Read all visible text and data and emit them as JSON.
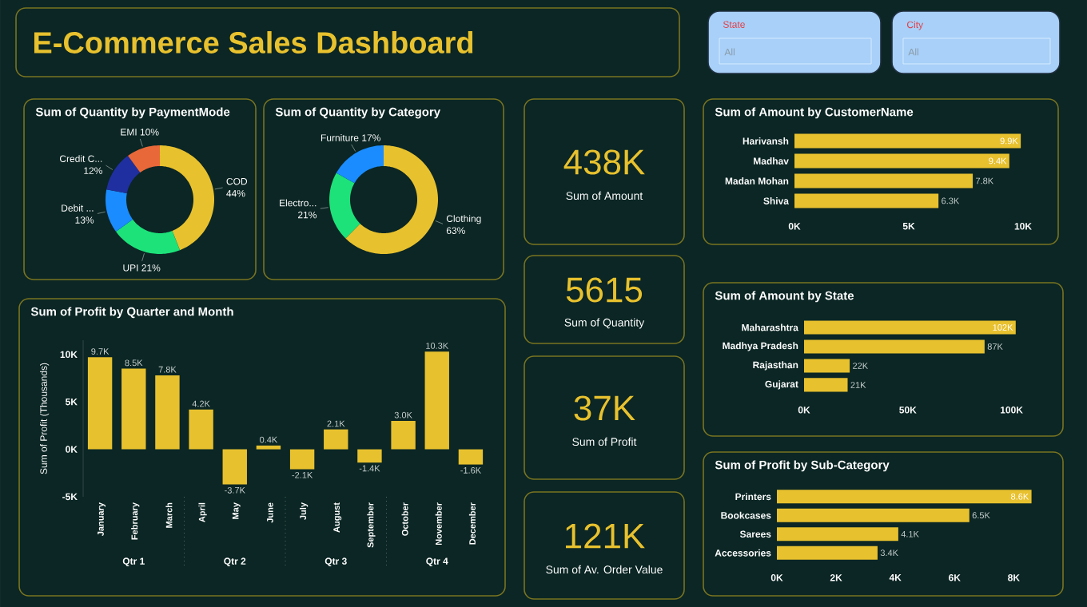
{
  "chart_data": [
    {
      "type": "other",
      "title": "E-Commerce Sales Dashboard"
    },
    {
      "type": "other",
      "title": "State",
      "annotations": [
        "All"
      ]
    },
    {
      "type": "other",
      "title": "City",
      "annotations": [
        "All"
      ]
    },
    {
      "type": "donut",
      "title": "Sum of Quantity by PaymentMode",
      "categories": [
        "COD",
        "UPI",
        "Debit ...",
        "Credit C...",
        "EMI"
      ],
      "values": [
        44,
        21,
        13,
        12,
        10
      ],
      "value_labels": [
        "44%",
        "21%",
        "13%",
        "12%",
        "10%"
      ],
      "colors": [
        "#e8c12e",
        "#1de27a",
        "#1a8cff",
        "#1f2fa0",
        "#e8683a"
      ]
    },
    {
      "type": "donut",
      "title": "Sum of Quantity by Category",
      "categories": [
        "Clothing",
        "Electro...",
        "Furniture"
      ],
      "values": [
        63,
        21,
        17
      ],
      "value_labels": [
        "63%",
        "21%",
        "17%"
      ],
      "colors": [
        "#e8c12e",
        "#1de27a",
        "#1a8cff"
      ]
    },
    {
      "type": "bar",
      "title": "Sum of Profit by Quarter and Month",
      "ylabel": "Sum of Profit (Thousands)",
      "categories": [
        "January",
        "February",
        "March",
        "April",
        "May",
        "June",
        "July",
        "August",
        "September",
        "October",
        "November",
        "December"
      ],
      "values": [
        9700,
        8500,
        7800,
        4200,
        -3700,
        400,
        -2100,
        2100,
        -1400,
        3000,
        10300,
        -1600
      ],
      "value_labels": [
        "9.7K",
        "8.5K",
        "7.8K",
        "4.2K",
        "-3.7K",
        "0.4K",
        "-2.1K",
        "2.1K",
        "-1.4K",
        "3.0K",
        "10.3K",
        "-1.6K"
      ],
      "color": "#e8c12e",
      "ylim": [
        -5000,
        11500
      ],
      "yticks": [
        {
          "value": -5000,
          "label": "-5K"
        },
        {
          "value": 0,
          "label": "0K"
        },
        {
          "value": 5000,
          "label": "5K"
        },
        {
          "value": 10000,
          "label": "10K"
        }
      ],
      "annotations": [
        "Qtr 1",
        "Qtr 2",
        "Qtr 3",
        "Qtr 4"
      ]
    },
    {
      "type": "other",
      "title": "Sum of Amount",
      "annotations": [
        "438K"
      ]
    },
    {
      "type": "other",
      "title": "Sum of Quantity",
      "annotations": [
        "5615"
      ]
    },
    {
      "type": "other",
      "title": "Sum of Profit",
      "annotations": [
        "37K"
      ]
    },
    {
      "type": "other",
      "title": "Sum of Av. Order Value",
      "annotations": [
        "121K"
      ]
    },
    {
      "type": "bar",
      "orientation": "horizontal",
      "title": "Sum of Amount by CustomerName",
      "categories": [
        "Harivansh",
        "Madhav",
        "Madan Mohan",
        "Shiva"
      ],
      "values": [
        9900,
        9400,
        7800,
        6300
      ],
      "value_labels": [
        "9.9K",
        "9.4K",
        "7.8K",
        "6.3K"
      ],
      "color": "#e8c12e",
      "xlim": [
        0,
        10000
      ],
      "xticks": [
        {
          "value": 0,
          "label": "0K"
        },
        {
          "value": 5000,
          "label": "5K"
        },
        {
          "value": 10000,
          "label": "10K"
        }
      ]
    },
    {
      "type": "bar",
      "orientation": "horizontal",
      "title": "Sum of Amount by State",
      "categories": [
        "Maharashtra",
        "Madhya Pradesh",
        "Rajasthan",
        "Gujarat"
      ],
      "values": [
        102000,
        87000,
        22000,
        21000
      ],
      "value_labels": [
        "102K",
        "87K",
        "22K",
        "21K"
      ],
      "color": "#e8c12e",
      "xlim": [
        0,
        104000
      ],
      "xticks": [
        {
          "value": 0,
          "label": "0K"
        },
        {
          "value": 50000,
          "label": "50K"
        },
        {
          "value": 100000,
          "label": "100K"
        }
      ]
    },
    {
      "type": "bar",
      "orientation": "horizontal",
      "title": "Sum of Profit by Sub-Category",
      "categories": [
        "Printers",
        "Bookcases",
        "Sarees",
        "Accessories"
      ],
      "values": [
        8600,
        6500,
        4100,
        3400
      ],
      "value_labels": [
        "8.6K",
        "6.5K",
        "4.1K",
        "3.4K"
      ],
      "color": "#e8c12e",
      "xlim": [
        0,
        8800
      ],
      "xticks": [
        {
          "value": 0,
          "label": "0K"
        },
        {
          "value": 2000,
          "label": "2K"
        },
        {
          "value": 4000,
          "label": "4K"
        },
        {
          "value": 6000,
          "label": "6K"
        },
        {
          "value": 8000,
          "label": "8K"
        }
      ]
    }
  ]
}
